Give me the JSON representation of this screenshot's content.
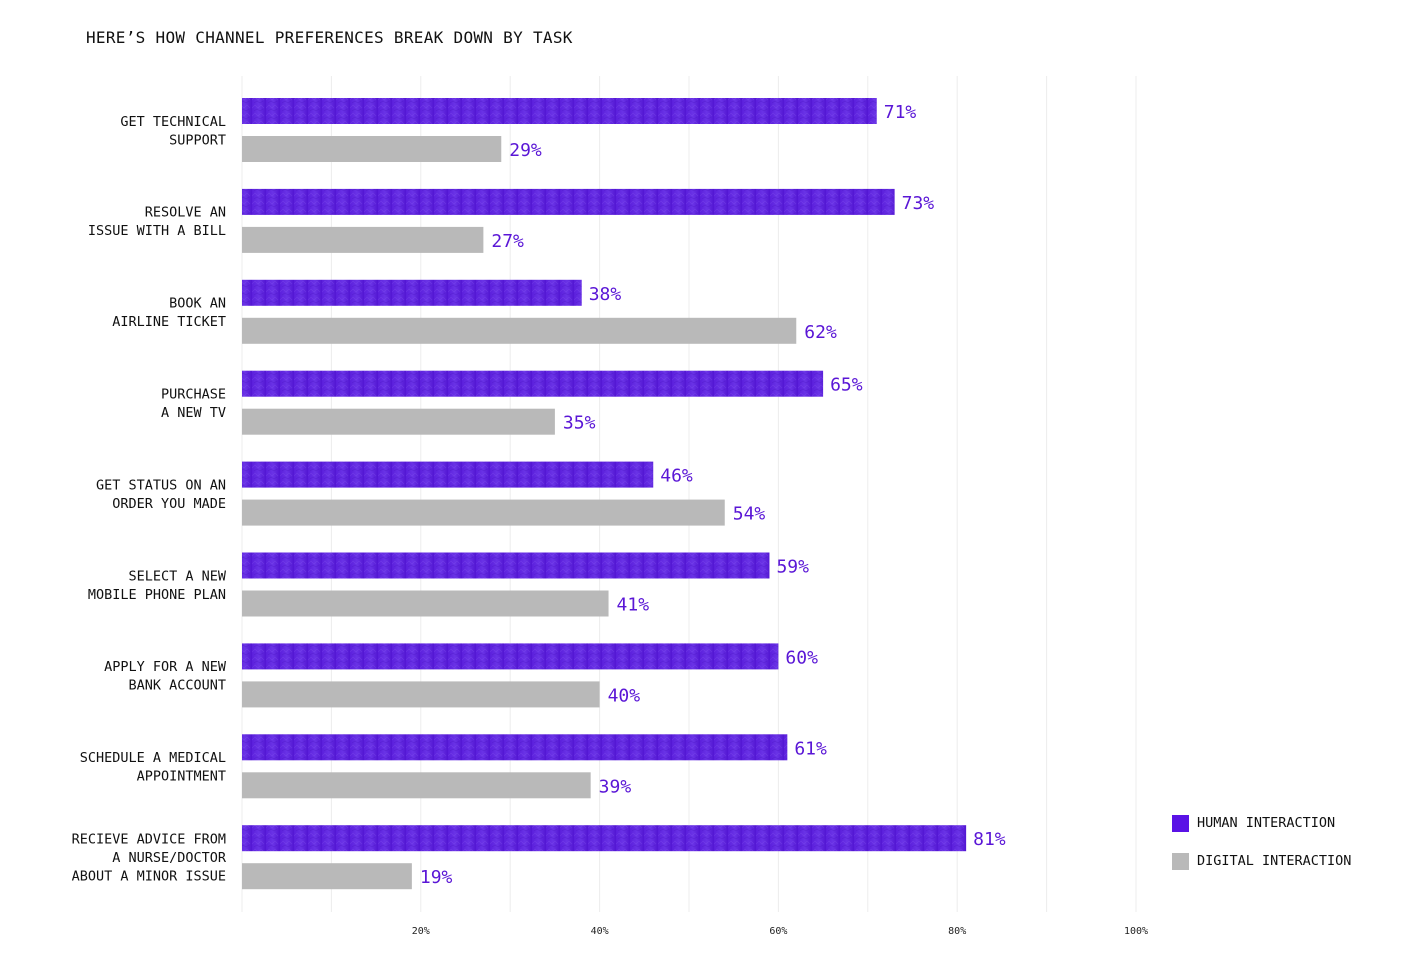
{
  "colors": {
    "human": "#5f24e0",
    "human_dark": "#4b12c8",
    "digital": "#b9b9b9",
    "value_label": "#5a16d6",
    "grid": "#ececec"
  },
  "chart_data": {
    "type": "bar",
    "orientation": "horizontal",
    "title": "HERE’S HOW CHANNEL PREFERENCES BREAK DOWN BY TASK",
    "xlabel": "",
    "ylabel": "",
    "xlim": [
      0,
      100
    ],
    "grid": true,
    "legend_position": "bottom-right",
    "categories": [
      [
        "GET TECHNICAL",
        "SUPPORT"
      ],
      [
        "RESOLVE AN",
        "ISSUE WITH A BILL"
      ],
      [
        "BOOK AN",
        "AIRLINE TICKET"
      ],
      [
        "PURCHASE",
        "A NEW TV"
      ],
      [
        "GET STATUS ON AN",
        "ORDER YOU MADE"
      ],
      [
        "SELECT A NEW",
        "MOBILE PHONE PLAN"
      ],
      [
        "APPLY FOR A NEW",
        "BANK ACCOUNT"
      ],
      [
        "SCHEDULE A MEDICAL",
        "APPOINTMENT"
      ],
      [
        "RECIEVE ADVICE FROM",
        "A NURSE/DOCTOR",
        "ABOUT A MINOR ISSUE"
      ]
    ],
    "series": [
      {
        "name": "HUMAN INTERACTION",
        "values": [
          71,
          73,
          38,
          65,
          46,
          59,
          60,
          61,
          81
        ],
        "labels": [
          "71%",
          "73%",
          "38%",
          "65%",
          "46%",
          "59%",
          "60%",
          "61%",
          "81%"
        ]
      },
      {
        "name": "DIGITAL INTERACTION",
        "values": [
          29,
          27,
          62,
          35,
          54,
          41,
          40,
          39,
          19
        ],
        "labels": [
          "29%",
          "27%",
          "62%",
          "35%",
          "54%",
          "41%",
          "40%",
          "39%",
          "19%"
        ]
      }
    ],
    "ticks": [
      {
        "value": 20,
        "label": "20%"
      },
      {
        "value": 40,
        "label": "40%"
      },
      {
        "value": 60,
        "label": "60%"
      },
      {
        "value": 80,
        "label": "80%"
      },
      {
        "value": 100,
        "label": "100%"
      }
    ],
    "gridlines": [
      0,
      10,
      20,
      30,
      40,
      50,
      60,
      70,
      80,
      90,
      100
    ]
  },
  "legend": {
    "human_label": "HUMAN INTERACTION",
    "digital_label": "DIGITAL INTERACTION"
  }
}
